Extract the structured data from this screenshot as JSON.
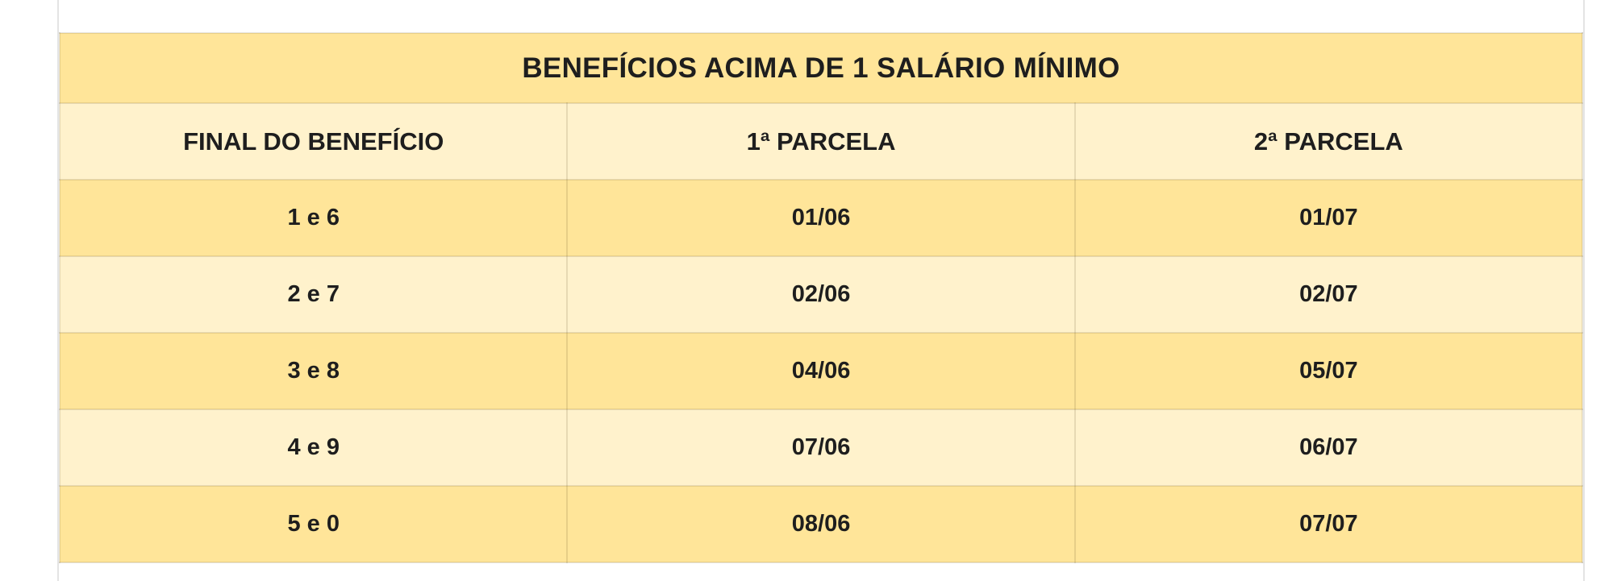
{
  "page": {
    "background_color": "#FFFFFF",
    "frame_border_color": "#E4E4E4"
  },
  "table": {
    "title": "BENEFÍCIOS ACIMA DE 1 SALÁRIO MÍNIMO",
    "columns": [
      "FINAL DO BENEFÍCIO",
      "1ª PARCELA",
      "2ª PARCELA"
    ],
    "rows": [
      [
        "1 e 6",
        "01/06",
        "01/07"
      ],
      [
        "2 e 7",
        "02/06",
        "02/07"
      ],
      [
        "3 e 8",
        "04/06",
        "05/07"
      ],
      [
        "4 e 9",
        "07/06",
        "06/07"
      ],
      [
        "5 e 0",
        "08/06",
        "07/07"
      ]
    ],
    "colors": {
      "title_band_background": "#FFE599",
      "header_row_background": "#FFF2CC",
      "stripe_dark": "#FFE599",
      "stripe_light": "#FFF2CC",
      "grid_line": "#D9CE9F",
      "text": "#1E1E1E"
    }
  }
}
